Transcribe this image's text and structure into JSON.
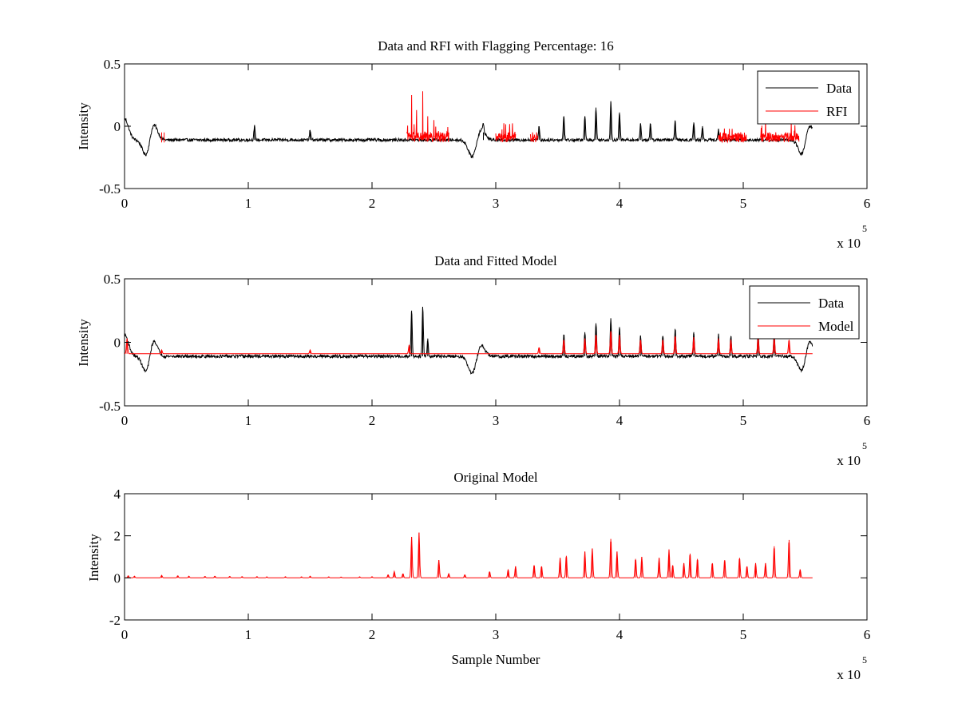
{
  "figure": {
    "background": "#ffffff"
  },
  "chart_data": [
    {
      "type": "line",
      "title": "Data and RFI with Flagging Percentage: 16",
      "xlabel": "",
      "ylabel": "Intensity",
      "xlim": [
        0,
        600000
      ],
      "ylim": [
        -0.5,
        0.5
      ],
      "xticks": [
        0,
        100000,
        200000,
        300000,
        400000,
        500000,
        600000
      ],
      "xtick_labels": [
        "0",
        "1",
        "2",
        "3",
        "4",
        "5",
        "6"
      ],
      "yticks": [
        -0.5,
        0,
        0.5
      ],
      "ytick_labels": [
        "-0.5",
        "0",
        "0.5"
      ],
      "x_multiplier": {
        "base": "x 10",
        "exponent": "5"
      },
      "legend": {
        "placement": "top-right",
        "entries": [
          "Data",
          "RFI"
        ]
      },
      "series": [
        {
          "name": "Data",
          "color": "#000000",
          "baseline": -0.11,
          "noise": 0.012,
          "x_end": 556000,
          "dips": [
            [
              0,
              0.06
            ],
            [
              18000,
              -0.26
            ],
            [
              23000,
              0.04
            ],
            [
              281000,
              -0.25
            ],
            [
              288000,
              -0.02
            ],
            [
              548000,
              -0.25
            ],
            [
              553000,
              0.03
            ]
          ],
          "peaks": [
            [
              105000,
              0.0
            ],
            [
              150000,
              -0.03
            ],
            [
              290000,
              -0.05
            ],
            [
              335000,
              0.0
            ],
            [
              355000,
              0.08
            ],
            [
              372000,
              0.08
            ],
            [
              381000,
              0.15
            ],
            [
              393000,
              0.19
            ],
            [
              400000,
              0.11
            ],
            [
              417000,
              0.02
            ],
            [
              425000,
              0.02
            ],
            [
              445000,
              0.04
            ],
            [
              460000,
              0.03
            ],
            [
              467000,
              0.0
            ],
            [
              480000,
              -0.03
            ]
          ]
        },
        {
          "name": "RFI",
          "color": "#ff0000",
          "segments": [
            [
              228000,
              262000
            ],
            [
              300000,
              316000
            ],
            [
              328000,
              334000
            ],
            [
              480000,
              503000
            ],
            [
              514000,
              545000
            ]
          ],
          "peaks": [
            [
              232000,
              0.25
            ],
            [
              236000,
              0.13
            ],
            [
              241000,
              0.28
            ],
            [
              245000,
              0.08
            ],
            [
              250000,
              0.05
            ],
            [
              505000,
              0.02
            ],
            [
              518000,
              0.01
            ]
          ]
        }
      ]
    },
    {
      "type": "line",
      "title": "Data and Fitted Model",
      "xlabel": "",
      "ylabel": "Intensity",
      "xlim": [
        0,
        600000
      ],
      "ylim": [
        -0.5,
        0.5
      ],
      "xticks": [
        0,
        100000,
        200000,
        300000,
        400000,
        500000,
        600000
      ],
      "xtick_labels": [
        "0",
        "1",
        "2",
        "3",
        "4",
        "5",
        "6"
      ],
      "yticks": [
        -0.5,
        0,
        0.5
      ],
      "ytick_labels": [
        "-0.5",
        "0",
        "0.5"
      ],
      "x_multiplier": {
        "base": "x 10",
        "exponent": "5"
      },
      "legend": {
        "placement": "top-right",
        "entries": [
          "Data",
          "Model"
        ]
      },
      "series": [
        {
          "name": "Data",
          "color": "#000000",
          "baseline": -0.11,
          "noise": 0.012,
          "x_end": 556000,
          "dips": [
            [
              0,
              0.06
            ],
            [
              18000,
              -0.26
            ],
            [
              23000,
              0.04
            ],
            [
              281000,
              -0.25
            ],
            [
              288000,
              -0.02
            ],
            [
              548000,
              -0.25
            ],
            [
              553000,
              0.03
            ]
          ],
          "peaks": [
            [
              232000,
              0.25
            ],
            [
              241000,
              0.28
            ],
            [
              245000,
              0.03
            ],
            [
              355000,
              0.06
            ],
            [
              372000,
              0.08
            ],
            [
              381000,
              0.15
            ],
            [
              393000,
              0.19
            ],
            [
              400000,
              0.12
            ],
            [
              417000,
              0.05
            ],
            [
              435000,
              0.05
            ],
            [
              445000,
              0.1
            ],
            [
              460000,
              0.08
            ],
            [
              480000,
              0.06
            ],
            [
              490000,
              0.05
            ],
            [
              512000,
              0.08
            ],
            [
              525000,
              0.07
            ]
          ]
        },
        {
          "name": "Model",
          "color": "#ff0000",
          "baseline": -0.09,
          "x_end": 556000,
          "peaks": [
            [
              2000,
              0.03
            ],
            [
              30000,
              -0.06
            ],
            [
              150000,
              -0.06
            ],
            [
              230000,
              -0.02
            ],
            [
              335000,
              -0.04
            ],
            [
              355000,
              0.02
            ],
            [
              372000,
              0.03
            ],
            [
              381000,
              0.06
            ],
            [
              393000,
              0.09
            ],
            [
              400000,
              0.06
            ],
            [
              417000,
              0.02
            ],
            [
              435000,
              0.02
            ],
            [
              445000,
              0.05
            ],
            [
              460000,
              0.04
            ],
            [
              480000,
              0.03
            ],
            [
              490000,
              0.02
            ],
            [
              512000,
              0.04
            ],
            [
              525000,
              0.03
            ],
            [
              537000,
              0.02
            ]
          ]
        }
      ]
    },
    {
      "type": "line",
      "title": "Original Model",
      "xlabel": "Sample Number",
      "ylabel": "Intensity",
      "xlim": [
        0,
        600000
      ],
      "ylim": [
        -2,
        4
      ],
      "xticks": [
        0,
        100000,
        200000,
        300000,
        400000,
        500000,
        600000
      ],
      "xtick_labels": [
        "0",
        "1",
        "2",
        "3",
        "4",
        "5",
        "6"
      ],
      "yticks": [
        -2,
        0,
        2,
        4
      ],
      "ytick_labels": [
        "-2",
        "0",
        "2",
        "4"
      ],
      "x_multiplier": {
        "base": "x 10",
        "exponent": "5"
      },
      "legend": null,
      "series": [
        {
          "name": "",
          "color": "#ff0000",
          "baseline": 0,
          "x_end": 556000,
          "peaks": [
            [
              3000,
              0.1
            ],
            [
              8000,
              0.08
            ],
            [
              30000,
              0.12
            ],
            [
              43000,
              0.1
            ],
            [
              52000,
              0.08
            ],
            [
              65000,
              0.07
            ],
            [
              73000,
              0.08
            ],
            [
              85000,
              0.07
            ],
            [
              95000,
              0.06
            ],
            [
              107000,
              0.06
            ],
            [
              115000,
              0.05
            ],
            [
              130000,
              0.06
            ],
            [
              143000,
              0.05
            ],
            [
              150000,
              0.08
            ],
            [
              165000,
              0.05
            ],
            [
              175000,
              0.04
            ],
            [
              190000,
              0.05
            ],
            [
              200000,
              0.06
            ],
            [
              213000,
              0.15
            ],
            [
              218000,
              0.3
            ],
            [
              225000,
              0.2
            ],
            [
              232000,
              1.95
            ],
            [
              238000,
              2.15
            ],
            [
              254000,
              0.85
            ],
            [
              262000,
              0.2
            ],
            [
              275000,
              0.15
            ],
            [
              295000,
              0.3
            ],
            [
              310000,
              0.4
            ],
            [
              316000,
              0.55
            ],
            [
              331000,
              0.6
            ],
            [
              337000,
              0.55
            ],
            [
              352000,
              0.95
            ],
            [
              357000,
              1.05
            ],
            [
              372000,
              1.25
            ],
            [
              378000,
              1.4
            ],
            [
              393000,
              1.85
            ],
            [
              398000,
              1.25
            ],
            [
              413000,
              0.9
            ],
            [
              418000,
              1.0
            ],
            [
              432000,
              0.95
            ],
            [
              440000,
              1.35
            ],
            [
              443000,
              0.6
            ],
            [
              452000,
              0.7
            ],
            [
              457000,
              1.15
            ],
            [
              463000,
              0.9
            ],
            [
              475000,
              0.7
            ],
            [
              485000,
              0.85
            ],
            [
              497000,
              0.95
            ],
            [
              503000,
              0.55
            ],
            [
              510000,
              0.7
            ],
            [
              518000,
              0.7
            ],
            [
              525000,
              1.5
            ],
            [
              537000,
              1.8
            ],
            [
              546000,
              0.4
            ]
          ]
        }
      ]
    }
  ]
}
